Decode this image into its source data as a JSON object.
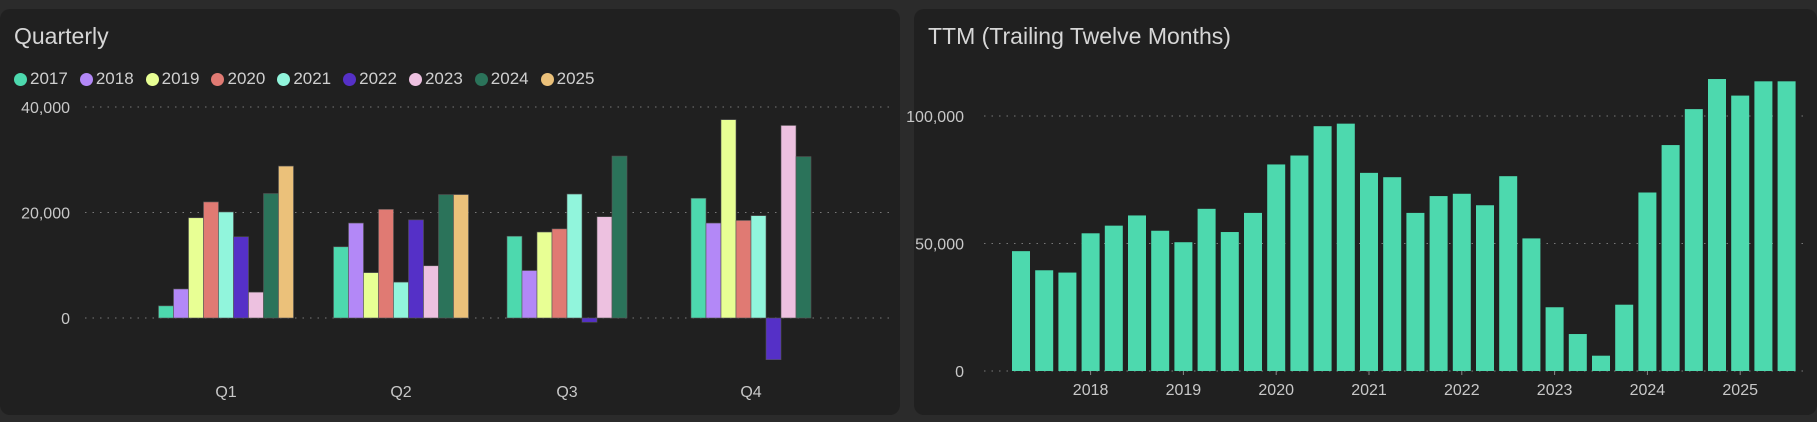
{
  "chart_data": [
    {
      "type": "bar",
      "title": "Quarterly",
      "categories": [
        "Q1",
        "Q2",
        "Q3",
        "Q4"
      ],
      "ylim": [
        -10000,
        45000
      ],
      "yticks": [
        0,
        20000,
        40000
      ],
      "ytick_labels": [
        "0",
        "20,000",
        "40,000"
      ],
      "legend": "top-left",
      "series": [
        {
          "name": "2017",
          "color": "#4dd9ae",
          "values": [
            2300,
            13500,
            15500,
            22700
          ]
        },
        {
          "name": "2018",
          "color": "#b388f7",
          "values": [
            5500,
            18000,
            9000,
            18000
          ]
        },
        {
          "name": "2019",
          "color": "#e8ff94",
          "values": [
            19000,
            8600,
            16300,
            37600
          ]
        },
        {
          "name": "2020",
          "color": "#e07a73",
          "values": [
            22000,
            20600,
            16900,
            18500
          ]
        },
        {
          "name": "2021",
          "color": "#91f5dc",
          "values": [
            20100,
            6800,
            23500,
            19400
          ]
        },
        {
          "name": "2022",
          "color": "#5530c7",
          "values": [
            15400,
            18600,
            -800,
            -7900
          ]
        },
        {
          "name": "2023",
          "color": "#edc1e0",
          "values": [
            4900,
            9900,
            19200,
            36500
          ]
        },
        {
          "name": "2024",
          "color": "#2b735a",
          "values": [
            23600,
            23400,
            30700,
            30600
          ]
        },
        {
          "name": "2025",
          "color": "#ebc17a",
          "values": [
            28800,
            23400,
            null,
            null
          ]
        }
      ]
    },
    {
      "type": "bar",
      "title": "TTM (Trailing Twelve Months)",
      "color": "#4dd9ae",
      "ylim": [
        0,
        118000
      ],
      "yticks": [
        0,
        50000,
        100000
      ],
      "ytick_labels": [
        "0",
        "50,000",
        "100,000"
      ],
      "x_labels": [
        "2018",
        "2019",
        "2020",
        "2021",
        "2022",
        "2023",
        "2024",
        "2025"
      ],
      "x": [
        "2017Q2",
        "2017Q3",
        "2017Q4",
        "2018Q1",
        "2018Q2",
        "2018Q3",
        "2018Q4",
        "2019Q1",
        "2019Q2",
        "2019Q3",
        "2019Q4",
        "2020Q1",
        "2020Q2",
        "2020Q3",
        "2020Q4",
        "2021Q1",
        "2021Q2",
        "2021Q3",
        "2021Q4",
        "2022Q1",
        "2022Q2",
        "2022Q3",
        "2022Q4",
        "2023Q1",
        "2023Q2",
        "2023Q3",
        "2023Q4",
        "2024Q1",
        "2024Q2",
        "2024Q3",
        "2024Q4",
        "2025Q1",
        "2025Q2",
        "2025Q3"
      ],
      "values": [
        47000,
        39500,
        38600,
        54000,
        57000,
        61000,
        55000,
        50500,
        63600,
        54500,
        62000,
        81000,
        84500,
        96000,
        97000,
        77700,
        76000,
        62000,
        68600,
        69500,
        65000,
        76400,
        52000,
        25000,
        14500,
        6000,
        26000,
        70000,
        88600,
        102700,
        114500,
        108000,
        113600,
        113600
      ]
    }
  ]
}
